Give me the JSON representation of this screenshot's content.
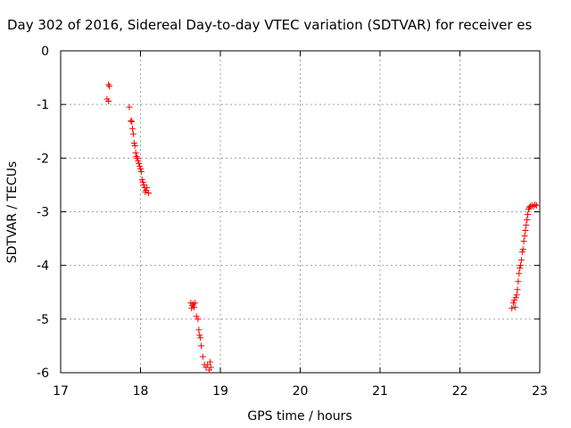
{
  "chart_data": {
    "type": "scatter",
    "title": "Day 302 of 2016, Sidereal Day-to-day VTEC variation (SDTVAR) for receiver es",
    "xlabel": "GPS time / hours",
    "ylabel": "SDTVAR / TECUs",
    "xlim": [
      17,
      23
    ],
    "ylim": [
      -6,
      0
    ],
    "x_ticks": [
      "17",
      "18",
      "19",
      "20",
      "21",
      "22",
      "23"
    ],
    "y_ticks": [
      "0",
      "-1",
      "-2",
      "-3",
      "-4",
      "-5",
      "-6"
    ],
    "grid": true,
    "marker": "+",
    "marker_color": "#ff0000",
    "series": [
      {
        "x": [
          17.6,
          17.61,
          17.58,
          17.6,
          17.86,
          17.88,
          17.89,
          17.9,
          17.91,
          17.92,
          17.93,
          17.94,
          17.95,
          17.96,
          17.97,
          17.98,
          17.99,
          18.0,
          18.01,
          18.02,
          18.03,
          18.04,
          18.05,
          18.06,
          18.07,
          18.08,
          18.1,
          18.63,
          18.64,
          18.65,
          18.66,
          18.67,
          18.68,
          18.7,
          18.72,
          18.73,
          18.74,
          18.75,
          18.76,
          18.78,
          18.8,
          18.82,
          18.84,
          18.86,
          18.87,
          18.88,
          22.65,
          22.67,
          22.68,
          22.69,
          22.7,
          22.71,
          22.72,
          22.73,
          22.74,
          22.75,
          22.76,
          22.77,
          22.78,
          22.79,
          22.8,
          22.81,
          22.82,
          22.83,
          22.84,
          22.85,
          22.86,
          22.87,
          22.88,
          22.9,
          22.92,
          22.94,
          22.96
        ],
        "y": [
          -0.63,
          -0.66,
          -0.9,
          -0.94,
          -1.05,
          -1.3,
          -1.32,
          -1.45,
          -1.55,
          -1.72,
          -1.77,
          -1.9,
          -1.97,
          -2.0,
          -2.05,
          -2.1,
          -2.15,
          -2.2,
          -2.25,
          -2.4,
          -2.45,
          -2.5,
          -2.55,
          -2.63,
          -2.6,
          -2.55,
          -2.65,
          -4.7,
          -4.8,
          -4.75,
          -4.72,
          -4.78,
          -4.7,
          -4.95,
          -5.0,
          -5.2,
          -5.3,
          -5.35,
          -5.5,
          -5.7,
          -5.85,
          -5.9,
          -5.85,
          -5.95,
          -5.8,
          -5.9,
          -4.8,
          -4.7,
          -4.65,
          -4.78,
          -4.6,
          -4.55,
          -4.45,
          -4.3,
          -4.15,
          -4.05,
          -4.0,
          -3.9,
          -3.75,
          -3.7,
          -3.55,
          -3.45,
          -3.35,
          -3.25,
          -3.15,
          -3.05,
          -2.95,
          -2.92,
          -2.9,
          -2.88,
          -2.9,
          -2.87,
          -2.88
        ]
      }
    ]
  }
}
